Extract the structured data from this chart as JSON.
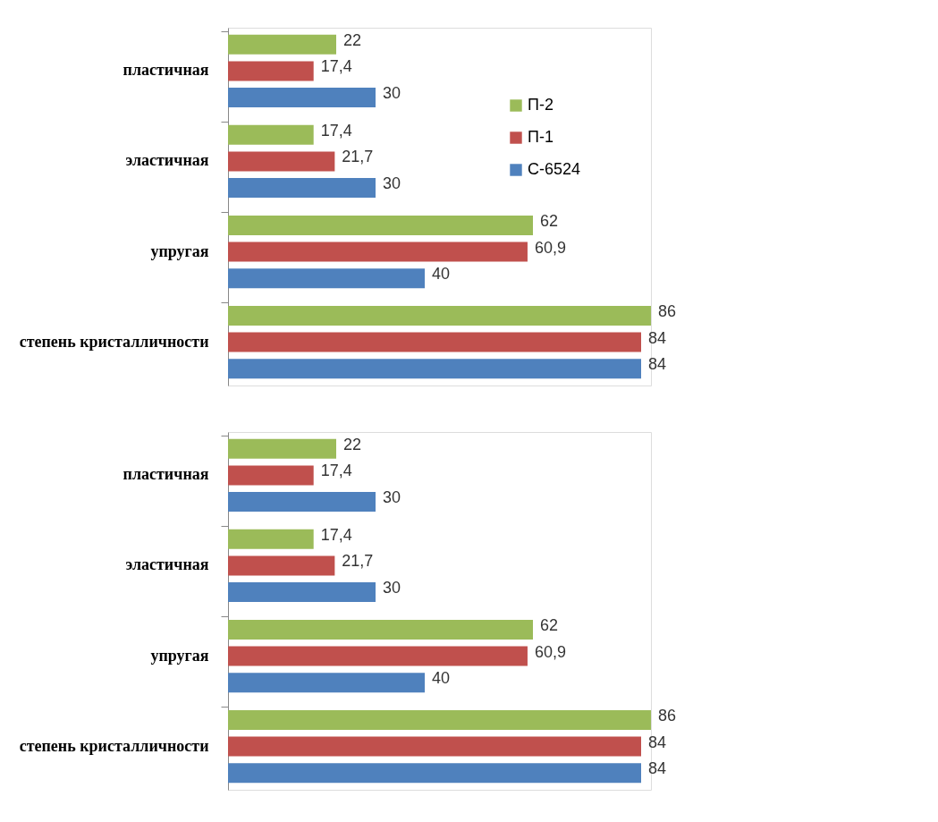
{
  "chart_data": [
    {
      "type": "bar",
      "orientation": "horizontal",
      "categories": [
        "пластичная",
        "эластичная",
        "упругая",
        "степень кристалличности"
      ],
      "legend": "top right",
      "grid": false,
      "series": [
        {
          "name": "П-2",
          "color": "#9bbb59",
          "values": [
            22,
            17.4,
            62,
            86
          ],
          "value_labels": [
            "22",
            "17,4",
            "62",
            "86"
          ]
        },
        {
          "name": "П-1",
          "color": "#c0504d",
          "values": [
            17.4,
            21.7,
            60.9,
            84
          ],
          "value_labels": [
            "17,4",
            "21,7",
            "60,9",
            "84"
          ]
        },
        {
          "name": "С-6524",
          "color": "#4f81bd",
          "values": [
            30,
            30,
            40,
            84
          ],
          "value_labels": [
            "30",
            "30",
            "40",
            "84"
          ]
        }
      ]
    },
    {
      "type": "bar",
      "orientation": "horizontal",
      "categories": [
        "пластичная",
        "эластичная",
        "упругая",
        "степень кристалличности"
      ],
      "legend": "top right",
      "grid": false,
      "series": [
        {
          "name": "П-2",
          "color": "#9bbb59",
          "values": [
            22,
            17.4,
            62,
            86
          ],
          "value_labels": [
            "22",
            "17,4",
            "62",
            "86"
          ]
        },
        {
          "name": "П-1",
          "color": "#c0504d",
          "values": [
            17.4,
            21.7,
            60.9,
            84
          ],
          "value_labels": [
            "17,4",
            "21,7",
            "60,9",
            "84"
          ]
        },
        {
          "name": "С-6524",
          "color": "#4f81bd",
          "values": [
            30,
            30,
            40,
            84
          ],
          "value_labels": [
            "30",
            "30",
            "40",
            "84"
          ]
        }
      ]
    }
  ]
}
